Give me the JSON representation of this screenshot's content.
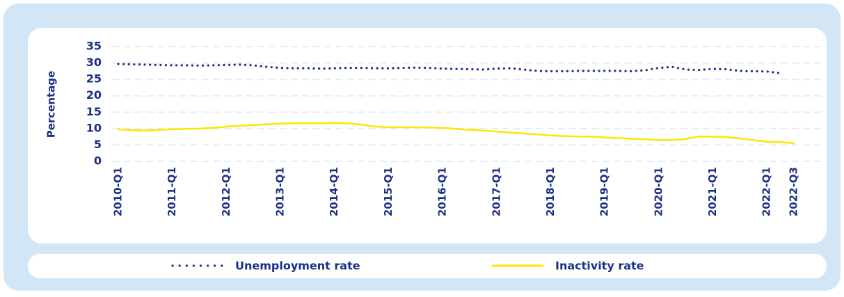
{
  "chart_data": {
    "type": "line",
    "y_label": "Percentage",
    "categories": [
      "2010-Q1",
      null,
      null,
      null,
      "2011-Q1",
      null,
      null,
      null,
      "2012-Q1",
      null,
      null,
      null,
      "2013-Q1",
      null,
      null,
      null,
      "2014-Q1",
      null,
      null,
      null,
      "2015-Q1",
      null,
      null,
      null,
      "2016-Q1",
      null,
      null,
      null,
      "2017-Q1",
      null,
      null,
      null,
      "2018-Q1",
      null,
      null,
      null,
      "2019-Q1",
      null,
      null,
      null,
      "2020-Q1",
      null,
      null,
      null,
      "2021-Q1",
      null,
      null,
      null,
      "2022-Q1",
      null,
      "2022-Q3"
    ],
    "series": [
      {
        "name": "Unemployment rate",
        "color": "#1b2f86",
        "style": "dotted",
        "values": [
          29.7,
          29.6,
          29.5,
          29.4,
          29.3,
          29.3,
          29.2,
          29.3,
          29.4,
          29.5,
          29.3,
          28.8,
          28.5,
          28.4,
          28.4,
          28.3,
          28.4,
          28.5,
          28.5,
          28.4,
          28.4,
          28.5,
          28.6,
          28.5,
          28.3,
          28.2,
          28.1,
          28.0,
          28.3,
          28.4,
          28.0,
          27.6,
          27.5,
          27.5,
          27.6,
          27.6,
          27.6,
          27.6,
          27.5,
          27.8,
          28.5,
          28.8,
          28.0,
          27.9,
          28.2,
          28.1,
          27.6,
          27.5,
          27.4,
          26.9,
          null
        ]
      },
      {
        "name": "Inactivity rate",
        "color": "#ffe600",
        "style": "solid",
        "values": [
          9.8,
          9.5,
          9.4,
          9.6,
          9.8,
          9.9,
          10.0,
          10.2,
          10.6,
          10.9,
          11.1,
          11.3,
          11.5,
          11.6,
          11.6,
          11.6,
          11.7,
          11.6,
          11.2,
          10.6,
          10.4,
          10.4,
          10.4,
          10.3,
          10.2,
          9.9,
          9.6,
          9.4,
          9.1,
          8.8,
          8.5,
          8.2,
          7.9,
          7.7,
          7.6,
          7.5,
          7.3,
          7.1,
          6.9,
          6.7,
          6.5,
          6.5,
          6.8,
          7.6,
          7.5,
          7.4,
          7.0,
          6.5,
          6.0,
          5.9,
          5.5
        ]
      }
    ],
    "ylim": [
      0,
      35
    ],
    "yticks": [
      0,
      5,
      10,
      15,
      20,
      25,
      30,
      35
    ],
    "grid": true,
    "legend": "bottom"
  }
}
